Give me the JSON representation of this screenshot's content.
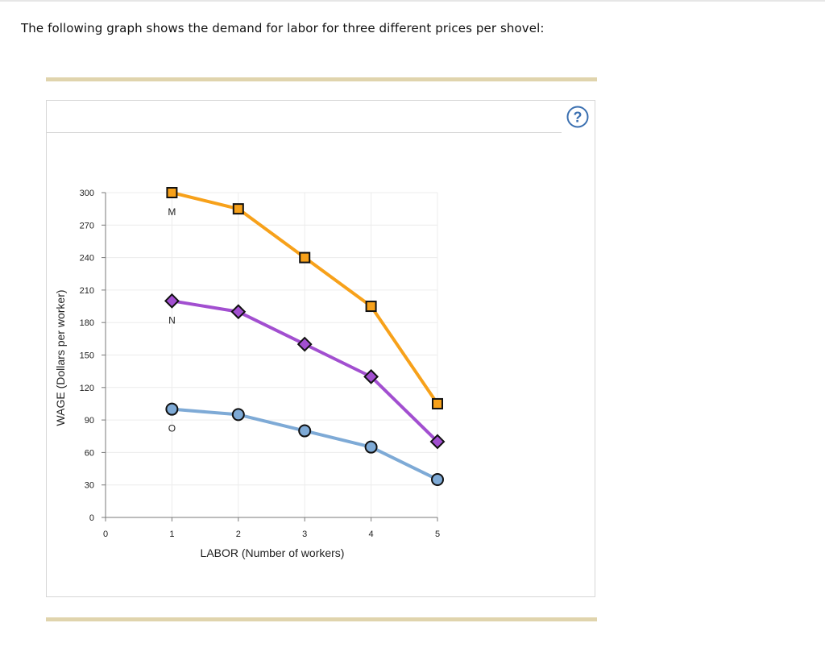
{
  "question": {
    "text": "The following graph shows the demand for labor for three different prices per shovel:"
  },
  "help_button": {
    "label": "?",
    "icon": "question-mark-icon"
  },
  "chart_data": {
    "type": "line",
    "title": "",
    "xlabel": "LABOR (Number of workers)",
    "ylabel": "WAGE (Dollars per worker)",
    "xlim": [
      0,
      5
    ],
    "ylim": [
      0,
      300
    ],
    "x_ticks": [
      0,
      1,
      2,
      3,
      4,
      5
    ],
    "y_ticks": [
      0,
      30,
      60,
      90,
      120,
      150,
      180,
      210,
      240,
      270,
      300
    ],
    "grid": true,
    "legend": "none",
    "series": [
      {
        "name": "M",
        "color": "#f7a11a",
        "marker": "square",
        "x": [
          1,
          2,
          3,
          4,
          5
        ],
        "y": [
          300,
          285,
          240,
          195,
          105
        ]
      },
      {
        "name": "N",
        "color": "#a24fd0",
        "marker": "diamond",
        "x": [
          1,
          2,
          3,
          4,
          5
        ],
        "y": [
          200,
          190,
          160,
          130,
          70
        ]
      },
      {
        "name": "O",
        "color": "#7eaad6",
        "marker": "circle",
        "x": [
          1,
          2,
          3,
          4,
          5
        ],
        "y": [
          100,
          95,
          80,
          65,
          35
        ]
      }
    ]
  }
}
